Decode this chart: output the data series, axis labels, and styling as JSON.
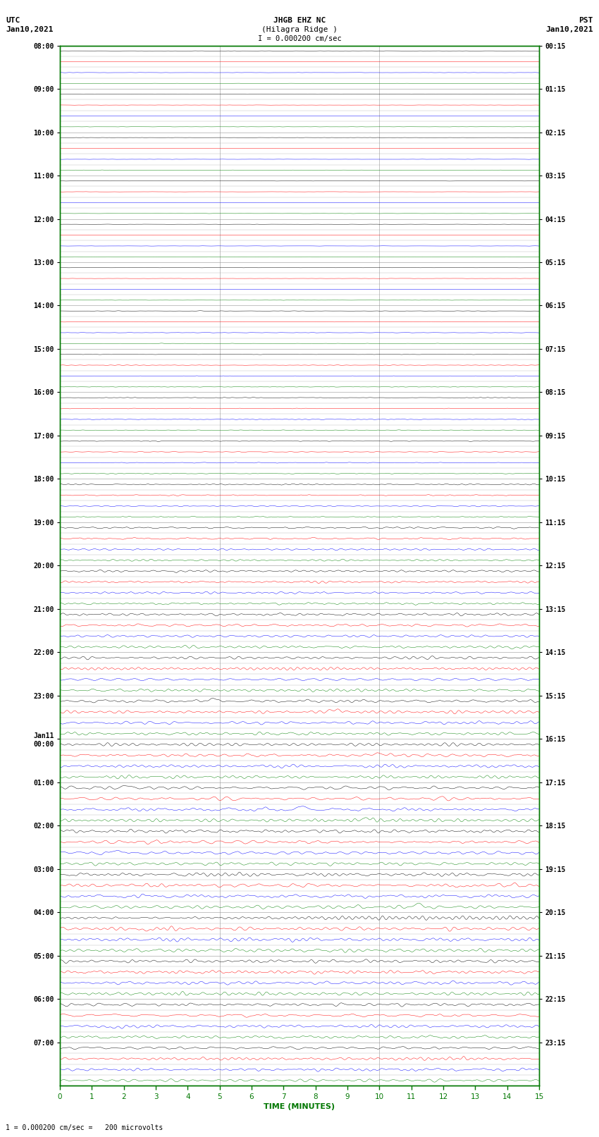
{
  "title_line1": "JHGB EHZ NC",
  "title_line2": "(Hilagra Ridge )",
  "title_scale": "I = 0.000200 cm/sec",
  "utc_label": "UTC",
  "utc_date": "Jan10,2021",
  "pst_label": "PST",
  "pst_date": "Jan10,2021",
  "bottom_label": "TIME (MINUTES)",
  "bottom_scale": "1 = 0.000200 cm/sec =   200 microvolts",
  "n_hour_blocks": 24,
  "traces_per_block": 4,
  "minutes_per_row": 15,
  "colors": [
    "black",
    "red",
    "blue",
    "green"
  ],
  "background_color": "white",
  "grid_color": "#888888",
  "axes_color": "#007700",
  "tick_color": "#007700",
  "label_color": "black",
  "title_color": "black",
  "left_hour_labels": [
    "08:00",
    "09:00",
    "10:00",
    "11:00",
    "12:00",
    "13:00",
    "14:00",
    "15:00",
    "16:00",
    "17:00",
    "18:00",
    "19:00",
    "20:00",
    "21:00",
    "22:00",
    "23:00",
    "Jan11\n00:00",
    "01:00",
    "02:00",
    "03:00",
    "04:00",
    "05:00",
    "06:00",
    "07:00"
  ],
  "right_hour_labels": [
    "00:15",
    "01:15",
    "02:15",
    "03:15",
    "04:15",
    "05:15",
    "06:15",
    "07:15",
    "08:15",
    "09:15",
    "10:15",
    "11:15",
    "12:15",
    "13:15",
    "14:15",
    "15:15",
    "16:15",
    "17:15",
    "18:15",
    "19:15",
    "20:15",
    "21:15",
    "22:15",
    "23:15"
  ],
  "amplitude_noise_per_row": [
    0.005,
    0.005,
    0.005,
    0.005,
    0.005,
    0.005,
    0.005,
    0.005,
    0.005,
    0.005,
    0.005,
    0.005,
    0.005,
    0.005,
    0.005,
    0.005,
    0.005,
    0.005,
    0.005,
    0.005,
    0.005,
    0.005,
    0.005,
    0.005,
    0.008,
    0.008,
    0.008,
    0.008,
    0.01,
    0.01,
    0.01,
    0.01,
    0.012,
    0.012,
    0.012,
    0.012,
    0.015,
    0.015,
    0.015,
    0.015,
    0.02,
    0.02,
    0.02,
    0.02,
    0.035,
    0.035,
    0.035,
    0.035,
    0.04,
    0.04,
    0.04,
    0.04,
    0.05,
    0.05,
    0.05,
    0.05,
    0.055,
    0.055,
    0.055,
    0.055,
    0.06,
    0.06,
    0.06,
    0.06,
    0.06,
    0.06,
    0.06,
    0.06,
    0.065,
    0.065,
    0.065,
    0.065,
    0.065,
    0.065,
    0.065,
    0.065,
    0.07,
    0.07,
    0.07,
    0.07,
    0.07,
    0.07,
    0.07,
    0.07,
    0.065,
    0.065,
    0.065,
    0.065,
    0.06,
    0.06,
    0.06,
    0.06,
    0.055,
    0.055,
    0.055,
    0.055
  ]
}
